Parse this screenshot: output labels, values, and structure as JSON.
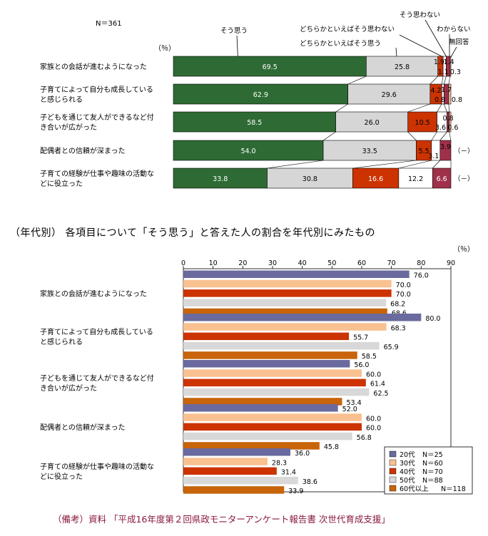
{
  "chart_data": [
    {
      "type": "bar",
      "stacked": true,
      "orientation": "horizontal",
      "n_label": "N＝361",
      "unit_label": "（％）",
      "categories": [
        "家族との会話が進むようになった",
        "子育てによって自分も成長していると感じられる",
        "子どもを通じて友人ができるなど付き合いが広がった",
        "配偶者との信頼が深まった",
        "子育ての経験が仕事や趣味の活動などに役立った"
      ],
      "category_lines": [
        [
          "家族との会話が進むようになった"
        ],
        [
          "子育てによって自分も成長している",
          "と感じられる"
        ],
        [
          "子どもを通じて友人ができるなど付",
          "き合いが広がった"
        ],
        [
          "配偶者との信頼が深まった"
        ],
        [
          "子育ての経験が仕事や趣味の活動な",
          "どに役立った"
        ]
      ],
      "series": [
        {
          "name": "そう思う",
          "values": [
            69.5,
            62.9,
            58.5,
            54.0,
            33.8
          ]
        },
        {
          "name": "どちらかといえばそう思う",
          "values": [
            25.8,
            29.6,
            26.0,
            33.5,
            30.8
          ]
        },
        {
          "name": "どちらかといえばそう思わない",
          "values": [
            1.9,
            4.2,
            10.5,
            5.5,
            16.6
          ]
        },
        {
          "name": "そう思わない",
          "values": [
            1.1,
            0.8,
            3.6,
            3.1,
            12.2
          ]
        },
        {
          "name": "わからない",
          "values": [
            1.4,
            1.7,
            0.8,
            3.9,
            6.6
          ]
        },
        {
          "name": "無回答",
          "values": [
            0.3,
            0.8,
            0.6,
            null,
            null
          ]
        }
      ],
      "missing_label": "（－）",
      "colors": [
        "#2e6b34",
        "#d6d6d6",
        "#cc3300",
        "#ffffff",
        "#a0304a",
        "#f2c0a0"
      ]
    },
    {
      "type": "bar",
      "orientation": "horizontal",
      "title": "（年代別） 各項目について「そう思う」と答えた人の割合を年代別にみたもの",
      "unit_label": "（％）",
      "categories": [
        "家族との会話が進むようになった",
        "子育てによって自分も成長していると感じられる",
        "子どもを通じて友人ができるなど付き合いが広がった",
        "配偶者との信頼が深まった",
        "子育ての経験が仕事や趣味の活動などに役立った"
      ],
      "category_lines": [
        [
          "家族との会話が進むようになった"
        ],
        [
          "子育てによって自分も成長している",
          "と感じられる"
        ],
        [
          "子どもを通じて友人ができるなど付",
          "き合いが広がった"
        ],
        [
          "配偶者との信頼が深まった"
        ],
        [
          "子育ての経験が仕事や趣味の活動な",
          "どに役立った"
        ]
      ],
      "xlim": [
        0,
        90
      ],
      "xticks": [
        0,
        10,
        20,
        30,
        40,
        50,
        60,
        70,
        80,
        90
      ],
      "series": [
        {
          "name": "20代",
          "n": "N＝25",
          "color": "#6a6a9e",
          "values": [
            76.0,
            80.0,
            56.0,
            52.0,
            36.0
          ]
        },
        {
          "name": "30代",
          "n": "N＝60",
          "color": "#f9c090",
          "values": [
            70.0,
            68.3,
            60.0,
            60.0,
            28.3
          ]
        },
        {
          "name": "40代",
          "n": "N＝70",
          "color": "#cc3300",
          "values": [
            70.0,
            55.7,
            61.4,
            60.0,
            31.4
          ]
        },
        {
          "name": "50代",
          "n": "N＝88",
          "color": "#d8d8d8",
          "values": [
            68.2,
            65.9,
            62.5,
            56.8,
            38.6
          ]
        },
        {
          "name": "60代以上",
          "n": "N＝118",
          "color": "#c8640a",
          "values": [
            68.6,
            58.5,
            53.4,
            45.8,
            33.9
          ]
        }
      ],
      "legend_position": "bottom-right"
    }
  ],
  "footer": {
    "source": "（備考）資料 「平成16年度第２回県政モニターアンケート報告書 次世代育成支援」"
  }
}
